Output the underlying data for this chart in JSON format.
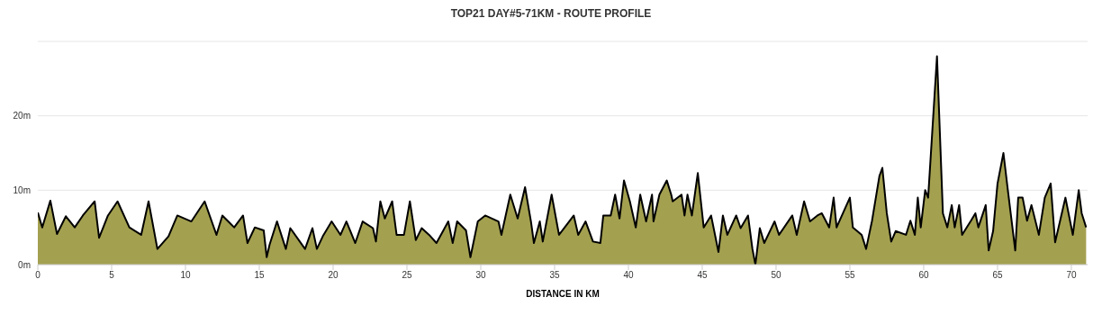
{
  "chart_data": {
    "type": "area",
    "title": "TOP21 DAY#5-71KM - ROUTE PROFILE",
    "xlabel": "DISTANCE IN KM",
    "x": [
      0,
      0.3,
      0.85,
      1.3,
      1.9,
      2.5,
      3.05,
      3.85,
      4.15,
      4.75,
      5.4,
      6.2,
      7.0,
      7.5,
      8.1,
      8.85,
      9.45,
      10.4,
      11.3,
      12.1,
      12.5,
      13.3,
      13.9,
      14.2,
      14.7,
      15.3,
      15.5,
      15.7,
      16.2,
      16.8,
      17.1,
      18.1,
      18.6,
      18.9,
      19.3,
      19.9,
      20.5,
      20.9,
      21.5,
      22.0,
      22.7,
      22.9,
      23.2,
      23.5,
      24.0,
      24.3,
      24.8,
      25.2,
      25.6,
      26.0,
      26.5,
      27.0,
      27.8,
      28.1,
      28.4,
      29.0,
      29.3,
      29.8,
      30.3,
      31.2,
      31.4,
      32.0,
      32.5,
      33.0,
      33.4,
      33.6,
      34.0,
      34.2,
      34.8,
      35.3,
      36.3,
      36.6,
      37.1,
      37.6,
      38.1,
      38.3,
      38.8,
      39.1,
      39.4,
      39.7,
      40.1,
      40.5,
      40.8,
      41.2,
      41.6,
      41.7,
      42.1,
      42.6,
      42.9,
      43.0,
      43.6,
      43.8,
      44.0,
      44.3,
      44.7,
      45.1,
      45.6,
      46.1,
      46.4,
      46.7,
      47.3,
      47.6,
      48.1,
      48.4,
      48.6,
      48.9,
      49.2,
      49.9,
      50.2,
      51.1,
      51.4,
      51.9,
      52.3,
      52.8,
      53.1,
      53.6,
      53.9,
      54.1,
      55.0,
      55.2,
      55.8,
      56.1,
      56.5,
      57.0,
      57.2,
      57.5,
      57.8,
      58.1,
      58.8,
      59.1,
      59.4,
      59.6,
      59.8,
      60.1,
      60.3,
      60.9,
      61.3,
      61.6,
      61.9,
      62.1,
      62.4,
      62.6,
      63.2,
      63.5,
      63.7,
      64.2,
      64.4,
      64.7,
      65.0,
      65.4,
      65.7,
      66.2,
      66.4,
      66.7,
      67.0,
      67.3,
      67.8,
      68.2,
      68.6,
      68.9,
      69.6,
      70.1,
      70.5,
      70.7,
      71.0
    ],
    "series": [
      {
        "color": "#a3a050",
        "values": [
          7,
          5,
          8.6,
          4.1,
          6.5,
          5,
          6.6,
          8.5,
          3.6,
          6.6,
          8.5,
          5,
          4,
          8.5,
          2.1,
          3.8,
          6.6,
          5.8,
          8.5,
          4,
          6.6,
          5,
          6.6,
          2.9,
          5,
          4.6,
          1,
          2.7,
          5.8,
          2.1,
          4.9,
          2.1,
          4.9,
          2.1,
          3.8,
          5.8,
          4,
          5.8,
          2.9,
          5.8,
          4.9,
          3.1,
          8.5,
          6.2,
          8.5,
          4,
          4,
          8.5,
          3.3,
          4.9,
          4,
          2.9,
          5.8,
          2.9,
          5.8,
          4.6,
          1,
          5.8,
          6.6,
          5.8,
          4,
          9.4,
          6.2,
          10.4,
          5.8,
          2.9,
          5.8,
          3.1,
          9.4,
          4,
          6.6,
          4,
          5.8,
          3.1,
          2.9,
          6.6,
          6.6,
          9.4,
          6.2,
          11.3,
          8.5,
          5,
          9.4,
          5.8,
          9.4,
          5.8,
          9.4,
          11.3,
          9.4,
          8.5,
          9.4,
          6.6,
          9.4,
          6.6,
          12.3,
          5,
          6.6,
          1.7,
          6.6,
          4,
          6.6,
          4.9,
          6.6,
          2.1,
          0,
          4.9,
          2.9,
          5.8,
          4,
          6.6,
          4,
          8.5,
          5.8,
          6.6,
          6.9,
          5,
          9,
          5,
          9,
          5,
          4,
          2.1,
          5.9,
          11.9,
          13,
          6.9,
          3.1,
          4.5,
          4,
          5.9,
          4,
          9,
          5,
          10,
          9,
          28,
          6.9,
          5,
          8,
          5,
          8,
          4,
          5.9,
          6.9,
          5,
          8,
          1.9,
          4.5,
          10.9,
          15,
          10,
          1.9,
          9,
          9,
          5.9,
          8,
          4,
          9,
          10.9,
          3,
          9,
          4,
          10,
          6.9,
          5
        ]
      }
    ],
    "xlim": [
      0,
      71.1
    ],
    "xticks": [
      0,
      5,
      10,
      15,
      20,
      25,
      30,
      35,
      40,
      45,
      50,
      55,
      60,
      65,
      70
    ],
    "ylim": [
      0,
      30
    ],
    "yticks": [
      {
        "value": 0,
        "label": "0m"
      },
      {
        "value": 10,
        "label": "10m"
      },
      {
        "value": 20,
        "label": "20m"
      }
    ],
    "grid": "y"
  }
}
